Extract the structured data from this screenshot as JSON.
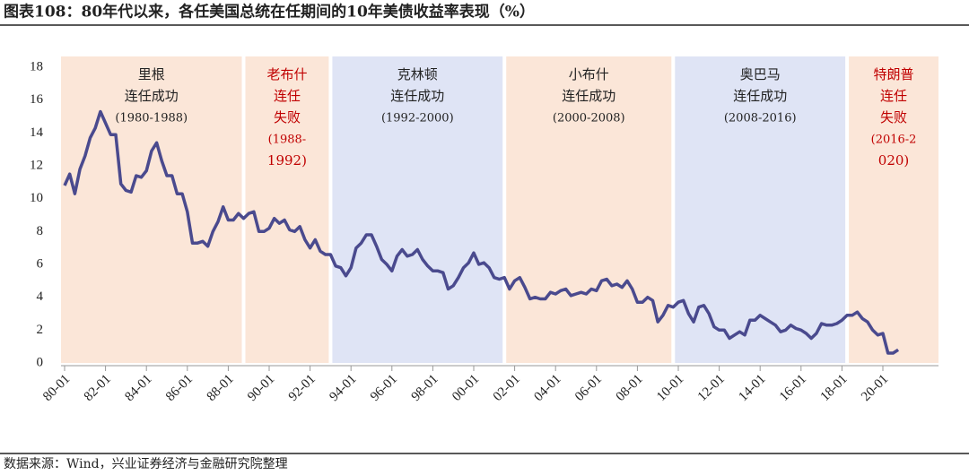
{
  "chart_data": {
    "type": "line",
    "title": "图表108：80年代以来，各任美国总统在任期间的10年美债收益率表现（%）",
    "source": "数据来源：Wind，兴业证券经济与金融研究院整理",
    "categories": [
      "80-01",
      null,
      null,
      null,
      null,
      null,
      null,
      null,
      "82-01",
      null,
      null,
      null,
      null,
      null,
      null,
      null,
      "84-01",
      null,
      null,
      null,
      null,
      null,
      null,
      null,
      "86-01",
      null,
      null,
      null,
      null,
      null,
      null,
      null,
      "88-01",
      null,
      null,
      null,
      null,
      null,
      null,
      null,
      "90-01",
      null,
      null,
      null,
      null,
      null,
      null,
      null,
      "92-01",
      null,
      null,
      null,
      null,
      null,
      null,
      null,
      "94-01",
      null,
      null,
      null,
      null,
      null,
      null,
      null,
      "96-01",
      null,
      null,
      null,
      null,
      null,
      null,
      null,
      "98-01",
      null,
      null,
      null,
      null,
      null,
      null,
      null,
      "00-01",
      null,
      null,
      null,
      null,
      null,
      null,
      null,
      "02-01",
      null,
      null,
      null,
      null,
      null,
      null,
      null,
      "04-01",
      null,
      null,
      null,
      null,
      null,
      null,
      null,
      "06-01",
      null,
      null,
      null,
      null,
      null,
      null,
      null,
      "08-01",
      null,
      null,
      null,
      null,
      null,
      null,
      null,
      "10-01",
      null,
      null,
      null,
      null,
      null,
      null,
      null,
      "12-01",
      null,
      null,
      null,
      null,
      null,
      null,
      null,
      "14-01",
      null,
      null,
      null,
      null,
      null,
      null,
      null,
      "16-01",
      null,
      null,
      null,
      null,
      null,
      null,
      null,
      "18-01",
      null,
      null,
      null,
      null,
      null,
      null,
      null,
      "20-01",
      null,
      null,
      null
    ],
    "values": [
      10.8,
      11.5,
      10.3,
      11.8,
      12.6,
      13.7,
      14.3,
      15.3,
      14.6,
      13.9,
      13.9,
      10.9,
      10.5,
      10.4,
      11.4,
      11.3,
      11.7,
      12.9,
      13.4,
      12.3,
      11.4,
      11.4,
      10.3,
      10.3,
      9.2,
      7.3,
      7.3,
      7.4,
      7.1,
      8.0,
      8.6,
      9.5,
      8.7,
      8.7,
      9.1,
      8.8,
      9.1,
      9.2,
      8.0,
      8.0,
      8.2,
      8.8,
      8.5,
      8.7,
      8.1,
      8.0,
      8.3,
      7.5,
      7.0,
      7.5,
      6.8,
      6.6,
      6.6,
      5.9,
      5.8,
      5.3,
      5.8,
      7.0,
      7.3,
      7.8,
      7.8,
      7.1,
      6.3,
      6.0,
      5.6,
      6.5,
      6.9,
      6.5,
      6.6,
      6.9,
      6.3,
      5.9,
      5.6,
      5.6,
      5.5,
      4.5,
      4.7,
      5.2,
      5.8,
      6.1,
      6.7,
      6.0,
      6.1,
      5.8,
      5.2,
      5.1,
      5.2,
      4.5,
      5.0,
      5.2,
      4.6,
      3.9,
      4.0,
      3.9,
      3.9,
      4.3,
      4.2,
      4.4,
      4.5,
      4.1,
      4.2,
      4.3,
      4.2,
      4.5,
      4.4,
      5.0,
      5.1,
      4.7,
      4.8,
      4.6,
      5.0,
      4.5,
      3.7,
      3.7,
      4.0,
      3.8,
      2.5,
      2.9,
      3.5,
      3.4,
      3.7,
      3.8,
      3.0,
      2.5,
      3.4,
      3.5,
      3.0,
      2.2,
      2.0,
      2.0,
      1.5,
      1.7,
      1.9,
      1.7,
      2.6,
      2.6,
      2.9,
      2.7,
      2.5,
      2.3,
      1.9,
      2.0,
      2.3,
      2.1,
      2.0,
      1.8,
      1.5,
      1.8,
      2.4,
      2.3,
      2.3,
      2.4,
      2.6,
      2.9,
      2.9,
      3.1,
      2.7,
      2.5,
      2.0,
      1.7,
      1.8,
      0.6,
      0.6,
      0.8
    ],
    "color": "#4a4a8e",
    "ylim": [
      0,
      18
    ],
    "yticks": [
      0,
      2,
      4,
      6,
      8,
      10,
      12,
      14,
      16,
      18
    ],
    "grid": false,
    "regions": [
      {
        "start": "80-01",
        "color": "#fbe6d8",
        "text_color": "#222222",
        "lines": [
          "里根",
          "连任成功",
          "(1980-1988)"
        ]
      },
      {
        "start": "88-10",
        "color": "#fbe6d8",
        "text_color": "#c00000",
        "lines": [
          "老布什",
          "连任",
          "失败",
          "(1988-",
          "1992)"
        ]
      },
      {
        "start": "93-01",
        "color": "#dfe4f5",
        "text_color": "#222222",
        "lines": [
          "克林顿",
          "连任成功",
          "(1992-2000)"
        ]
      },
      {
        "start": "01-07",
        "color": "#fbe6d8",
        "text_color": "#222222",
        "lines": [
          "小布什",
          "连任成功",
          "(2000-2008)"
        ]
      },
      {
        "start": "09-10",
        "color": "#dfe4f5",
        "text_color": "#222222",
        "lines": [
          "奥巴马",
          "连任成功",
          "(2008-2016)"
        ]
      },
      {
        "start": "18-04",
        "color": "#fbe6d8",
        "text_color": "#c00000",
        "lines": [
          "特朗普",
          "连任",
          "失败",
          "(2016-2",
          "020)"
        ]
      }
    ]
  }
}
